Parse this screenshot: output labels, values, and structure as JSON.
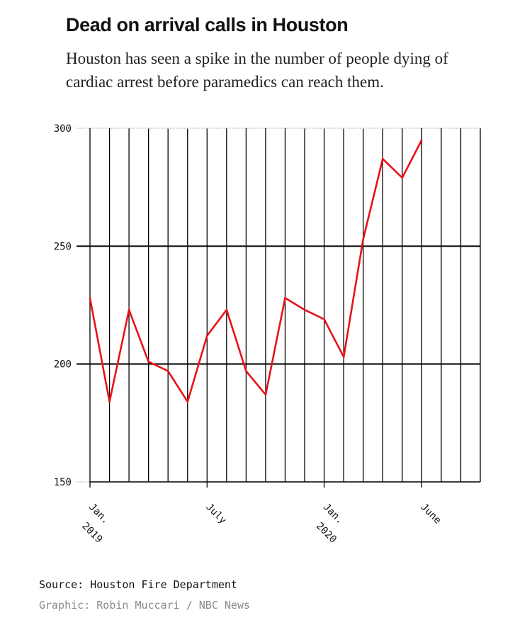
{
  "header": {
    "title": "Dead on arrival calls in Houston",
    "subtitle": "Houston has seen a spike in the number of people dying of cardiac arrest before paramedics can reach them."
  },
  "footer": {
    "source": "Source: Houston Fire Department",
    "credit": "Graphic: Robin Muccari / NBC News"
  },
  "chart_data": {
    "type": "line",
    "title": "Dead on arrival calls in Houston",
    "subtitle": "Houston has seen a spike in the number of people dying of cardiac arrest before paramedics can reach them.",
    "x": [
      "2019-01",
      "2019-02",
      "2019-03",
      "2019-04",
      "2019-05",
      "2019-06",
      "2019-07",
      "2019-08",
      "2019-09",
      "2019-10",
      "2019-11",
      "2019-12",
      "2020-01",
      "2020-02",
      "2020-03",
      "2020-04",
      "2020-05",
      "2020-06"
    ],
    "series": [
      {
        "values": [
          228,
          184,
          223,
          201,
          197,
          184,
          212,
          223,
          197,
          187,
          228,
          223,
          219,
          203,
          253,
          287,
          279,
          295
        ],
        "color": "#e8121a"
      }
    ],
    "x_ticks": [
      {
        "x": "2019-01",
        "label": "Jan. 2019"
      },
      {
        "x": "2019-07",
        "label": "July"
      },
      {
        "x": "2020-01",
        "label": "Jan. 2020"
      },
      {
        "x": "2020-06",
        "label": "June"
      }
    ],
    "ylim": [
      150,
      300
    ],
    "y_ticks": [
      150,
      200,
      250,
      300
    ],
    "xlim": [
      "2019-01",
      "2020-09"
    ],
    "grid": true,
    "xlabel": "",
    "ylabel": ""
  }
}
